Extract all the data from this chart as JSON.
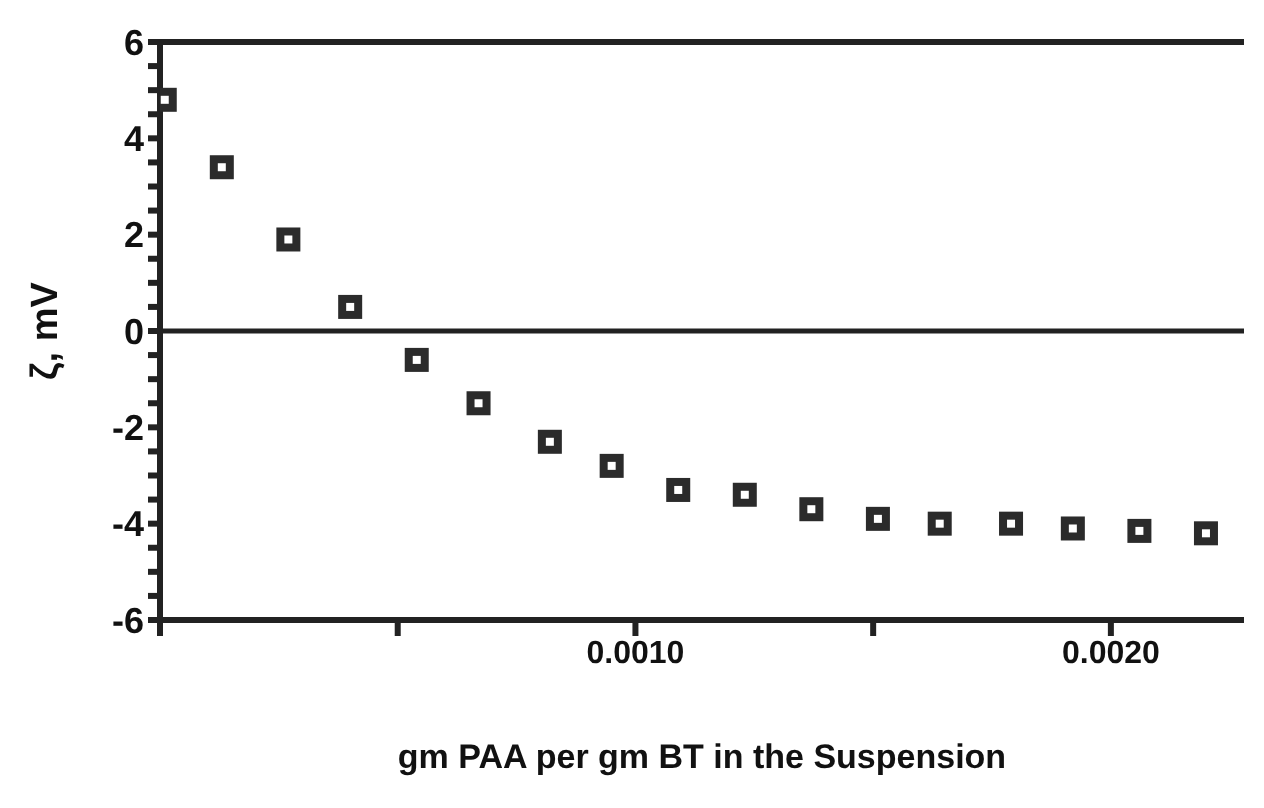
{
  "chart_data": {
    "type": "scatter",
    "xlabel": "gm PAA per gm BT in the Suspension",
    "ylabel": "ζ,  mV",
    "x": [
      1e-05,
      0.00013,
      0.00027,
      0.0004,
      0.00054,
      0.00067,
      0.00082,
      0.00095,
      0.00109,
      0.00123,
      0.00137,
      0.00151,
      0.00164,
      0.00179,
      0.00192,
      0.00206,
      0.0022
    ],
    "series": [
      {
        "color": "#2b2b2b",
        "values": [
          4.8,
          3.4,
          1.9,
          0.5,
          -0.6,
          -1.5,
          -2.3,
          -2.8,
          -3.3,
          -3.4,
          -3.7,
          -3.9,
          -4.0,
          -4.0,
          -4.1,
          -4.15,
          -4.2
        ]
      }
    ],
    "marker": "square",
    "xlim": [
      0,
      0.00228
    ],
    "xticks": [
      {
        "value": 0,
        "label": null
      },
      {
        "value": 0.0005,
        "label": null
      },
      {
        "value": 0.001,
        "label": "0.0010"
      },
      {
        "value": 0.0015,
        "label": null
      },
      {
        "value": 0.002,
        "label": "0.0020"
      }
    ],
    "ylim": [
      -6,
      6
    ],
    "yticks": [
      -6,
      {
        "value": -5.5,
        "label": null
      },
      {
        "value": -5,
        "label": null
      },
      {
        "value": -4.5,
        "label": null
      },
      -4,
      {
        "value": -3.5,
        "label": null
      },
      {
        "value": -3,
        "label": null
      },
      {
        "value": -2.5,
        "label": null
      },
      -2,
      {
        "value": -1.5,
        "label": null
      },
      {
        "value": -1,
        "label": null
      },
      {
        "value": -0.5,
        "label": null
      },
      0,
      {
        "value": 0.5,
        "label": null
      },
      {
        "value": 1,
        "label": null
      },
      {
        "value": 1.5,
        "label": null
      },
      2,
      {
        "value": 2.5,
        "label": null
      },
      {
        "value": 3,
        "label": null
      },
      {
        "value": 3.5,
        "label": null
      },
      4,
      {
        "value": 4.5,
        "label": null
      },
      {
        "value": 5,
        "label": null
      },
      {
        "value": 5.5,
        "label": null
      },
      6
    ],
    "ref_lines": [
      {
        "axis": "y",
        "value": 0,
        "color": "#222222"
      }
    ],
    "grid": false,
    "legend": false
  }
}
